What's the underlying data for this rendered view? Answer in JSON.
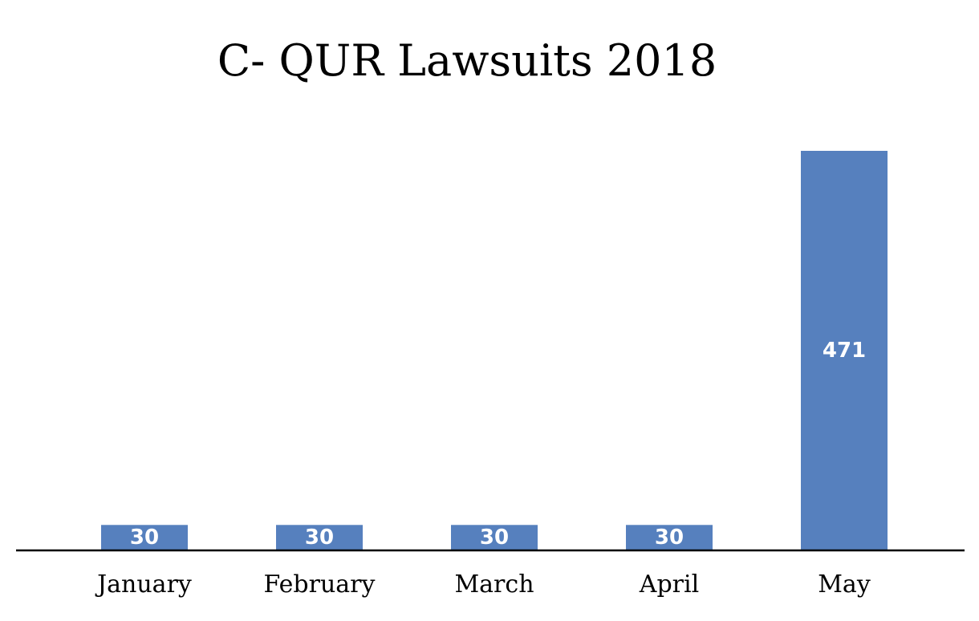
{
  "chart_data": {
    "type": "bar",
    "title": "C- QUR Lawsuits 2018",
    "categories": [
      "January",
      "February",
      "March",
      "April",
      "May"
    ],
    "values": [
      30,
      30,
      30,
      30,
      471
    ],
    "data_labels": [
      "30",
      "30",
      "30",
      "30",
      "471"
    ],
    "xlabel": "",
    "ylabel": "",
    "ylim": [
      0,
      471
    ],
    "grid": false,
    "legend": "none",
    "bar_color": "#5680BE",
    "label_color": "#FFFFFF"
  }
}
